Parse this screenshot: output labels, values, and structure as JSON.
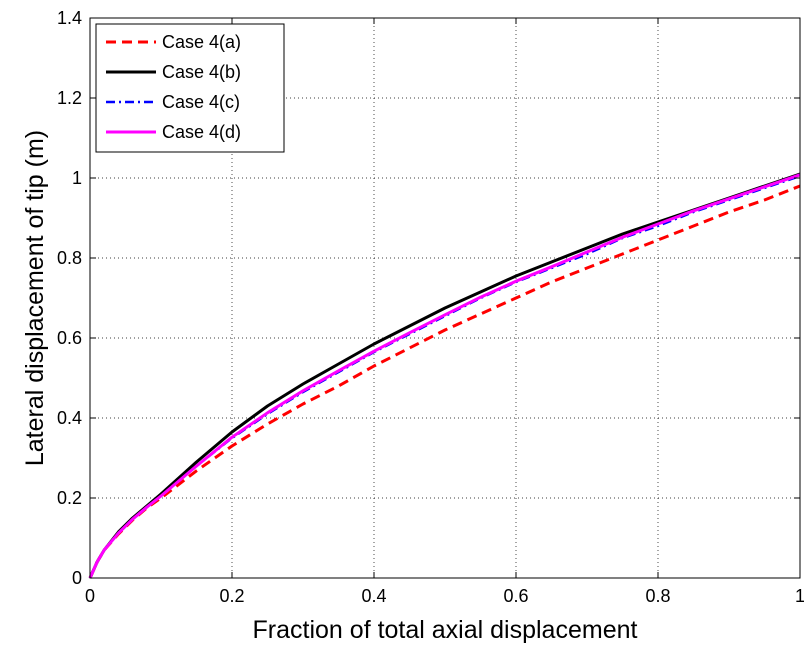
{
  "chart_data": {
    "type": "line",
    "title": "",
    "xlabel": "Fraction of total axial displacement",
    "ylabel": "Lateral displacement of tip (m)",
    "xlim": [
      0,
      1
    ],
    "ylim": [
      0,
      1.4
    ],
    "xticks": [
      0,
      0.2,
      0.4,
      0.6,
      0.8,
      1
    ],
    "xtick_labels": [
      "0",
      "0.2",
      "0.4",
      "0.6",
      "0.8",
      "1"
    ],
    "yticks": [
      0,
      0.2,
      0.4,
      0.6,
      0.8,
      1,
      1.2,
      1.4
    ],
    "ytick_labels": [
      "0",
      "0.2",
      "0.4",
      "0.6",
      "0.8",
      "1",
      "1.2",
      "1.4"
    ],
    "grid": true,
    "legend_position": "top-left",
    "x": [
      0,
      0.01,
      0.02,
      0.04,
      0.06,
      0.08,
      0.1,
      0.15,
      0.2,
      0.25,
      0.3,
      0.35,
      0.4,
      0.45,
      0.5,
      0.55,
      0.6,
      0.65,
      0.7,
      0.75,
      0.8,
      0.85,
      0.9,
      0.95,
      1.0
    ],
    "series": [
      {
        "name": "Case 4(a)",
        "color": "#ff0000",
        "dash": "dashed",
        "values": [
          0,
          0.04,
          0.07,
          0.11,
          0.145,
          0.175,
          0.2,
          0.268,
          0.33,
          0.385,
          0.435,
          0.48,
          0.53,
          0.575,
          0.62,
          0.66,
          0.7,
          0.74,
          0.775,
          0.81,
          0.845,
          0.88,
          0.915,
          0.945,
          0.98
        ]
      },
      {
        "name": "Case 4(b)",
        "color": "#000000",
        "dash": "solid",
        "values": [
          0,
          0.04,
          0.07,
          0.115,
          0.15,
          0.18,
          0.21,
          0.29,
          0.365,
          0.43,
          0.485,
          0.535,
          0.585,
          0.63,
          0.675,
          0.715,
          0.755,
          0.79,
          0.825,
          0.86,
          0.89,
          0.92,
          0.95,
          0.98,
          1.01
        ]
      },
      {
        "name": "Case 4(c)",
        "color": "#0000ff",
        "dash": "dashdot",
        "values": [
          0,
          0.04,
          0.07,
          0.112,
          0.147,
          0.177,
          0.205,
          0.28,
          0.35,
          0.41,
          0.465,
          0.515,
          0.565,
          0.61,
          0.655,
          0.7,
          0.74,
          0.775,
          0.81,
          0.85,
          0.88,
          0.915,
          0.945,
          0.975,
          1.005
        ]
      },
      {
        "name": "Case 4(d)",
        "color": "#ff00ff",
        "dash": "solid",
        "values": [
          0,
          0.04,
          0.07,
          0.112,
          0.147,
          0.177,
          0.205,
          0.28,
          0.352,
          0.413,
          0.468,
          0.518,
          0.567,
          0.613,
          0.658,
          0.702,
          0.742,
          0.778,
          0.815,
          0.852,
          0.885,
          0.918,
          0.948,
          0.978,
          1.008
        ]
      }
    ]
  }
}
